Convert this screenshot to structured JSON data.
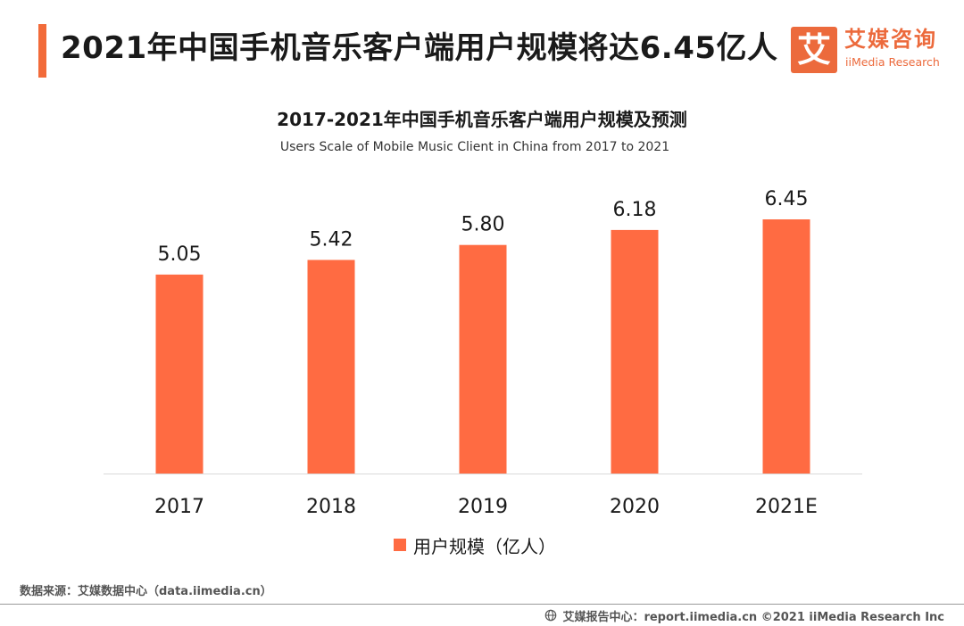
{
  "header": {
    "headline": "2021年中国手机音乐客户端用户规模将达6.45亿人"
  },
  "logo": {
    "mark": "艾",
    "name_cn": "艾媒咨询",
    "name_en": "iiMedia Research"
  },
  "chart_data": {
    "type": "bar",
    "title": "2017-2021年中国手机音乐客户端用户规模及预测",
    "subtitle": "Users Scale of Mobile Music Client  in China from 2017 to 2021",
    "categories": [
      "2017",
      "2018",
      "2019",
      "2020",
      "2021E"
    ],
    "series": [
      {
        "name": "用户规模（亿人）",
        "values": [
          5.05,
          5.42,
          5.8,
          6.18,
          6.45
        ],
        "labels": [
          "5.05",
          "5.42",
          "5.80",
          "6.18",
          "6.45"
        ],
        "color": "#ff6b42"
      }
    ],
    "xlabel": "",
    "ylabel": "",
    "ylim": [
      0,
      6.45
    ],
    "grid": false,
    "legend_position": "bottom-center"
  },
  "footer": {
    "source": "数据来源：艾媒数据中心（data.iimedia.cn）",
    "copyright": "艾媒报告中心：report.iimedia.cn ©2021  iiMedia Research  Inc",
    "icon": "globe-icon"
  }
}
